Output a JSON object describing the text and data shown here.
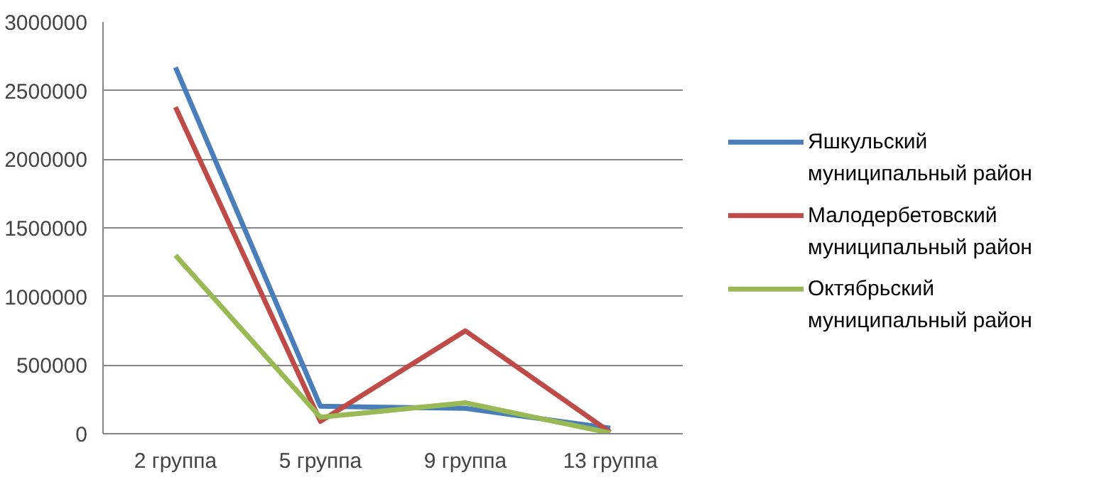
{
  "chart_data": {
    "type": "line",
    "categories": [
      "2 группа",
      "5 группа",
      "9 группа",
      "13 группа"
    ],
    "series": [
      {
        "name": "Яшкульский муниципальный район",
        "color": "#4a7ebb",
        "values": [
          2670000,
          200000,
          185000,
          40000
        ]
      },
      {
        "name": "Малодербетовский муниципальный район",
        "color": "#be4b48",
        "values": [
          2380000,
          90000,
          750000,
          10000
        ]
      },
      {
        "name": "Октябрьский муниципальный район",
        "color": "#98b954",
        "values": [
          1300000,
          120000,
          225000,
          5000
        ]
      }
    ],
    "ylim": [
      0,
      3000000
    ],
    "yticks": [
      0,
      500000,
      1000000,
      1500000,
      2000000,
      2500000,
      3000000
    ],
    "grid": "y",
    "legend": "right",
    "marker": "none",
    "line_style": "solid"
  }
}
